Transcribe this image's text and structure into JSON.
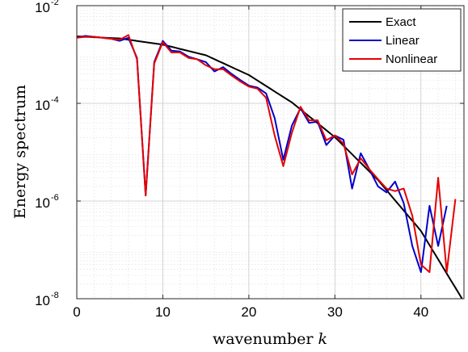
{
  "chart_data": {
    "type": "line",
    "xlabel": "wavenumber",
    "xlabel_var": "k",
    "ylabel": "Energy spectrum",
    "xlim": [
      0,
      45
    ],
    "ylim": [
      1e-08,
      0.01
    ],
    "yscale": "log",
    "grid": true,
    "minor_grid": true,
    "legend_position": "top-right",
    "x_ticks": [
      0,
      10,
      20,
      30,
      40
    ],
    "x_tick_labels": [
      "0",
      "10",
      "20",
      "30",
      "40"
    ],
    "y_ticks": [
      1e-08,
      1e-06,
      0.0001,
      0.01
    ],
    "y_tick_labels": [
      {
        "base": "10",
        "exp": "-8"
      },
      {
        "base": "10",
        "exp": "-6"
      },
      {
        "base": "10",
        "exp": "-4"
      },
      {
        "base": "10",
        "exp": "-2"
      }
    ],
    "series": [
      {
        "name": "Exact",
        "color": "#000000",
        "points": [
          [
            0,
            0.00235
          ],
          [
            5,
            0.00213
          ],
          [
            10,
            0.00159
          ],
          [
            15,
            0.000966
          ],
          [
            20,
            0.00038
          ],
          [
            25,
            0.0001045
          ],
          [
            30,
            2.03e-05
          ],
          [
            35,
            2.7e-06
          ],
          [
            40,
            2.44e-07
          ],
          [
            45,
            8.62e-09
          ]
        ]
      },
      {
        "name": "Linear",
        "color": "#0000cc",
        "points": [
          [
            0,
            0.0022
          ],
          [
            1,
            0.0024
          ],
          [
            2,
            0.0023
          ],
          [
            3,
            0.0022
          ],
          [
            4,
            0.0021
          ],
          [
            5,
            0.0019
          ],
          [
            6,
            0.0022
          ],
          [
            7,
            0.00085
          ],
          [
            8,
            1.3e-06
          ],
          [
            9,
            0.0007
          ],
          [
            10,
            0.0019
          ],
          [
            11,
            0.0012
          ],
          [
            12,
            0.00115
          ],
          [
            13,
            0.0009
          ],
          [
            14,
            0.0008
          ],
          [
            15,
            0.0007
          ],
          [
            16,
            0.00045
          ],
          [
            17,
            0.00055
          ],
          [
            18,
            0.0004
          ],
          [
            19,
            0.0003
          ],
          [
            20,
            0.00023
          ],
          [
            21,
            0.00021
          ],
          [
            22,
            0.00016
          ],
          [
            23,
            5e-05
          ],
          [
            24,
            7e-06
          ],
          [
            25,
            3.5e-05
          ],
          [
            26,
            8e-05
          ],
          [
            27,
            4e-05
          ],
          [
            28,
            4.2e-05
          ],
          [
            29,
            1.4e-05
          ],
          [
            30,
            2.2e-05
          ],
          [
            31,
            1.8e-05
          ],
          [
            32,
            1.8e-06
          ],
          [
            33,
            9.5e-06
          ],
          [
            34,
            4.5e-06
          ],
          [
            35,
            2e-06
          ],
          [
            36,
            1.5e-06
          ],
          [
            37,
            2.5e-06
          ],
          [
            38,
            9e-07
          ],
          [
            39,
            1.2e-07
          ],
          [
            40,
            3.5e-08
          ],
          [
            41,
            8e-07
          ],
          [
            42,
            1.2e-07
          ],
          [
            43,
            8e-07
          ]
        ]
      },
      {
        "name": "Nonlinear",
        "color": "#e60000",
        "points": [
          [
            0,
            0.0022
          ],
          [
            1,
            0.0023
          ],
          [
            2,
            0.0023
          ],
          [
            3,
            0.0022
          ],
          [
            4,
            0.0021
          ],
          [
            5,
            0.002
          ],
          [
            6,
            0.0025
          ],
          [
            7,
            0.0008
          ],
          [
            8,
            1.3e-06
          ],
          [
            9,
            0.00065
          ],
          [
            10,
            0.0018
          ],
          [
            11,
            0.0011
          ],
          [
            12,
            0.0011
          ],
          [
            13,
            0.00085
          ],
          [
            14,
            0.0008
          ],
          [
            15,
            0.0006
          ],
          [
            16,
            0.0005
          ],
          [
            17,
            0.0005
          ],
          [
            18,
            0.00037
          ],
          [
            19,
            0.00028
          ],
          [
            20,
            0.00022
          ],
          [
            21,
            0.0002
          ],
          [
            22,
            0.00013
          ],
          [
            23,
            2.2e-05
          ],
          [
            24,
            5.2e-06
          ],
          [
            25,
            2.5e-05
          ],
          [
            26,
            8.5e-05
          ],
          [
            27,
            4.5e-05
          ],
          [
            28,
            4.5e-05
          ],
          [
            29,
            1.75e-05
          ],
          [
            30,
            2.2e-05
          ],
          [
            31,
            1.5e-05
          ],
          [
            32,
            3.5e-06
          ],
          [
            33,
            7.5e-06
          ],
          [
            34,
            4.5e-06
          ],
          [
            35,
            2.8e-06
          ],
          [
            36,
            1.8e-06
          ],
          [
            37,
            1.6e-06
          ],
          [
            38,
            1.8e-06
          ],
          [
            39,
            5e-07
          ],
          [
            40,
            5e-08
          ],
          [
            41,
            3.5e-08
          ],
          [
            42,
            3e-06
          ],
          [
            43,
            3.5e-08
          ],
          [
            44,
            1.1e-06
          ]
        ]
      }
    ]
  }
}
